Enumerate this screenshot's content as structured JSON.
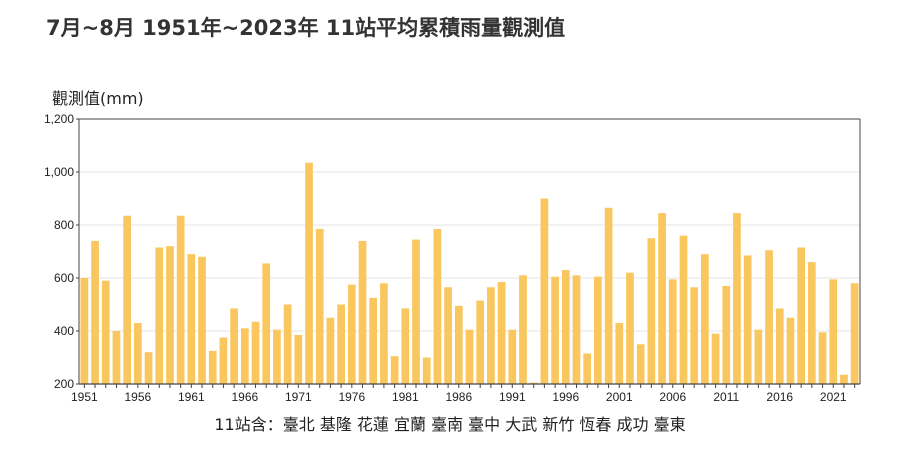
{
  "title": "7月~8月 1951年~2023年 11站平均累積雨量觀測值",
  "footnote": "11站含：臺北 基隆 花蓮 宜蘭 臺南 臺中 大武 新竹 恆春 成功 臺東",
  "colors": {
    "bar": "#F9C75E",
    "axis": "#444444",
    "grid": "#E6E6E6"
  },
  "chart_data": {
    "type": "bar",
    "title": "7月~8月 1951年~2023年 11站平均累積雨量觀測值",
    "xlabel": "",
    "ylabel": "觀測值(mm)",
    "ylim": [
      200,
      1200
    ],
    "yticks": [
      200,
      400,
      600,
      800,
      1000,
      1200
    ],
    "ytick_labels": [
      "200",
      "400",
      "600",
      "800",
      "1,000",
      "1,200"
    ],
    "xtick_labels": [
      "1951",
      "1956",
      "1961",
      "1966",
      "1971",
      "1976",
      "1981",
      "1986",
      "1991",
      "1996",
      "2001",
      "2006",
      "2011",
      "2016",
      "2021"
    ],
    "grid": true,
    "legend": "none",
    "categories": [
      "1951",
      "1952",
      "1953",
      "1954",
      "1955",
      "1956",
      "1957",
      "1958",
      "1959",
      "1960",
      "1961",
      "1962",
      "1963",
      "1964",
      "1965",
      "1966",
      "1967",
      "1968",
      "1969",
      "1970",
      "1971",
      "1972",
      "1973",
      "1974",
      "1975",
      "1976",
      "1977",
      "1978",
      "1979",
      "1980",
      "1981",
      "1982",
      "1983",
      "1984",
      "1985",
      "1986",
      "1987",
      "1988",
      "1989",
      "1990",
      "1991",
      "1992",
      "1993",
      "1994",
      "1995",
      "1996",
      "1997",
      "1998",
      "1999",
      "2000",
      "2001",
      "2002",
      "2003",
      "2004",
      "2005",
      "2006",
      "2007",
      "2008",
      "2009",
      "2010",
      "2011",
      "2012",
      "2013",
      "2014",
      "2015",
      "2016",
      "2017",
      "2018",
      "2019",
      "2020",
      "2021",
      "2022",
      "2023"
    ],
    "values": [
      600,
      740,
      590,
      400,
      835,
      430,
      320,
      715,
      720,
      835,
      690,
      680,
      325,
      375,
      485,
      410,
      435,
      655,
      405,
      500,
      385,
      1035,
      785,
      450,
      500,
      575,
      740,
      525,
      580,
      305,
      485,
      745,
      300,
      785,
      565,
      495,
      405,
      515,
      565,
      585,
      405,
      610,
      205,
      900,
      605,
      630,
      610,
      315,
      605,
      865,
      430,
      620,
      350,
      750,
      845,
      595,
      760,
      565,
      690,
      390,
      570,
      845,
      685,
      405,
      705,
      485,
      450,
      715,
      660,
      395,
      595,
      235,
      580
    ]
  }
}
